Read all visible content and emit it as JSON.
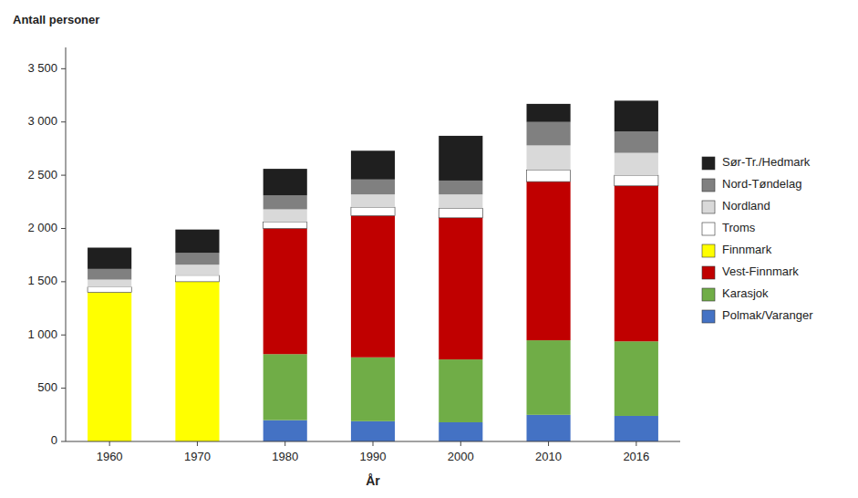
{
  "chart_data": {
    "type": "bar",
    "stacked": true,
    "x_label": "År",
    "y_label": "Antall personer",
    "categories": [
      "1960",
      "1970",
      "1980",
      "1990",
      "2000",
      "2010",
      "2016"
    ],
    "series": [
      {
        "name": "Polmak/Varanger",
        "color": "#4472C4",
        "values": [
          0,
          0,
          200,
          190,
          180,
          250,
          240
        ]
      },
      {
        "name": "Karasjok",
        "color": "#70AD47",
        "values": [
          0,
          0,
          620,
          600,
          590,
          700,
          700
        ]
      },
      {
        "name": "Vest-Finnmark",
        "color": "#C00000",
        "values": [
          0,
          0,
          1180,
          1330,
          1330,
          1490,
          1460
        ]
      },
      {
        "name": "Finnmark",
        "color": "#FFFF00",
        "values": [
          1400,
          1500,
          0,
          0,
          0,
          0,
          0
        ]
      },
      {
        "name": "Troms",
        "color": "#FFFFFF",
        "values": [
          50,
          60,
          60,
          80,
          90,
          110,
          100
        ]
      },
      {
        "name": "Nordland",
        "color": "#D9D9D9",
        "values": [
          70,
          100,
          120,
          120,
          130,
          230,
          210
        ]
      },
      {
        "name": "Nord-Tøndelag",
        "color": "#808080",
        "values": [
          100,
          110,
          130,
          140,
          130,
          220,
          200
        ]
      },
      {
        "name": "Sør-Tr./Hedmark",
        "color": "#1F1F1F",
        "values": [
          200,
          220,
          250,
          270,
          420,
          170,
          290
        ]
      }
    ],
    "ylim": [
      0,
      3700
    ],
    "yticks": [
      0,
      500,
      {
        "value": 1000,
        "label": "1 000"
      },
      {
        "value": 1500,
        "label": "1 500"
      },
      {
        "value": 2000,
        "label": "2 000"
      },
      {
        "value": 2500,
        "label": "2 500"
      },
      {
        "value": 3000,
        "label": "3 000"
      },
      {
        "value": 3500,
        "label": "3 500"
      }
    ],
    "grid": false,
    "legend": "right"
  }
}
